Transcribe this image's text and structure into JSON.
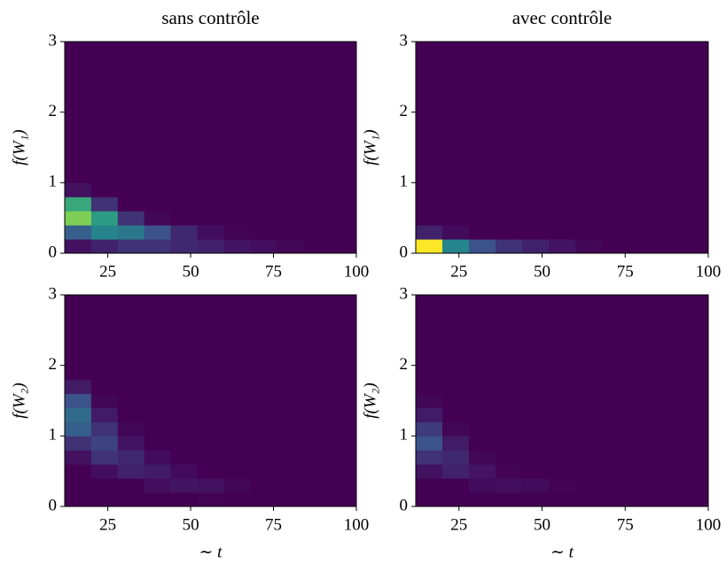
{
  "chart_data": [
    {
      "type": "heatmap",
      "title": "sans contrôle",
      "ylabel": "f(W₁)",
      "colormap": "viridis",
      "xlim": [
        12,
        100
      ],
      "ylim": [
        0,
        3
      ],
      "xticks": [
        25,
        50,
        75,
        100
      ],
      "yticks": [
        0,
        1,
        2,
        3
      ],
      "xbins": [
        12,
        20,
        28,
        36,
        44,
        52,
        60,
        68,
        76,
        84,
        92,
        100
      ],
      "ybins": [
        0,
        0.2,
        0.4,
        0.6,
        0.8,
        1.0,
        1.2,
        1.4,
        1.6,
        1.8,
        2.0,
        2.2,
        2.4,
        2.6,
        2.8,
        3.0
      ],
      "values": [
        [
          0.05,
          0.1,
          0.15,
          0.15,
          0.12,
          0.1,
          0.06,
          0.04,
          0.02,
          0,
          0
        ],
        [
          0.3,
          0.45,
          0.4,
          0.25,
          0.12,
          0.04,
          0.01,
          0,
          0,
          0,
          0
        ],
        [
          0.8,
          0.55,
          0.15,
          0.02,
          0,
          0,
          0,
          0,
          0,
          0,
          0
        ],
        [
          0.6,
          0.15,
          0,
          0,
          0,
          0,
          0,
          0,
          0,
          0,
          0
        ],
        [
          0.05,
          0,
          0,
          0,
          0,
          0,
          0,
          0,
          0,
          0,
          0
        ],
        [
          0,
          0,
          0,
          0,
          0,
          0,
          0,
          0,
          0,
          0,
          0
        ],
        [
          0,
          0,
          0,
          0,
          0,
          0,
          0,
          0,
          0,
          0,
          0
        ],
        [
          0,
          0,
          0,
          0,
          0,
          0,
          0,
          0,
          0,
          0,
          0
        ],
        [
          0,
          0,
          0,
          0,
          0,
          0,
          0,
          0,
          0,
          0,
          0
        ],
        [
          0,
          0,
          0,
          0,
          0,
          0,
          0,
          0,
          0,
          0,
          0
        ],
        [
          0,
          0,
          0,
          0,
          0,
          0,
          0,
          0,
          0,
          0,
          0
        ],
        [
          0,
          0,
          0,
          0,
          0,
          0,
          0,
          0,
          0,
          0,
          0
        ],
        [
          0,
          0,
          0,
          0,
          0,
          0,
          0,
          0,
          0,
          0,
          0
        ],
        [
          0,
          0,
          0,
          0,
          0,
          0,
          0,
          0,
          0,
          0,
          0
        ],
        [
          0,
          0,
          0,
          0,
          0,
          0,
          0,
          0,
          0,
          0,
          0
        ]
      ]
    },
    {
      "type": "heatmap",
      "title": "avec contrôle",
      "ylabel": "f(W₁)",
      "colormap": "viridis",
      "xlim": [
        12,
        100
      ],
      "ylim": [
        0,
        3
      ],
      "xticks": [
        25,
        50,
        75,
        100
      ],
      "yticks": [
        0,
        1,
        2,
        3
      ],
      "xbins": [
        12,
        20,
        28,
        36,
        44,
        52,
        60,
        68,
        76,
        84,
        92,
        100
      ],
      "ybins": [
        0,
        0.2,
        0.4,
        0.6,
        0.8,
        1.0,
        1.2,
        1.4,
        1.6,
        1.8,
        2.0,
        2.2,
        2.4,
        2.6,
        2.8,
        3.0
      ],
      "values": [
        [
          1.0,
          0.45,
          0.25,
          0.15,
          0.1,
          0.06,
          0.02,
          0,
          0,
          0,
          0
        ],
        [
          0.1,
          0.03,
          0,
          0,
          0,
          0,
          0,
          0,
          0,
          0,
          0
        ],
        [
          0,
          0,
          0,
          0,
          0,
          0,
          0,
          0,
          0,
          0,
          0
        ],
        [
          0,
          0,
          0,
          0,
          0,
          0,
          0,
          0,
          0,
          0,
          0
        ],
        [
          0,
          0,
          0,
          0,
          0,
          0,
          0,
          0,
          0,
          0,
          0
        ],
        [
          0,
          0,
          0,
          0,
          0,
          0,
          0,
          0,
          0,
          0,
          0
        ],
        [
          0,
          0,
          0,
          0,
          0,
          0,
          0,
          0,
          0,
          0,
          0
        ],
        [
          0,
          0,
          0,
          0,
          0,
          0,
          0,
          0,
          0,
          0,
          0
        ],
        [
          0,
          0,
          0,
          0,
          0,
          0,
          0,
          0,
          0,
          0,
          0
        ],
        [
          0,
          0,
          0,
          0,
          0,
          0,
          0,
          0,
          0,
          0,
          0
        ],
        [
          0,
          0,
          0,
          0,
          0,
          0,
          0,
          0,
          0,
          0,
          0
        ],
        [
          0,
          0,
          0,
          0,
          0,
          0,
          0,
          0,
          0,
          0,
          0
        ],
        [
          0,
          0,
          0,
          0,
          0,
          0,
          0,
          0,
          0,
          0,
          0
        ],
        [
          0,
          0,
          0,
          0,
          0,
          0,
          0,
          0,
          0,
          0,
          0
        ],
        [
          0,
          0,
          0,
          0,
          0,
          0,
          0,
          0,
          0,
          0,
          0
        ]
      ]
    },
    {
      "type": "heatmap",
      "ylabel": "f(W₂)",
      "xlabel": "∼ t",
      "colormap": "viridis",
      "xlim": [
        12,
        100
      ],
      "ylim": [
        0,
        3
      ],
      "xticks": [
        25,
        50,
        75,
        100
      ],
      "yticks": [
        0,
        1,
        2,
        3
      ],
      "xbins": [
        12,
        20,
        28,
        36,
        44,
        52,
        60,
        68,
        76,
        84,
        92,
        100
      ],
      "ybins": [
        0,
        0.2,
        0.4,
        0.6,
        0.8,
        1.0,
        1.2,
        1.4,
        1.6,
        1.8,
        2.0,
        2.2,
        2.4,
        2.6,
        2.8,
        3.0
      ],
      "values": [
        [
          0,
          0,
          0,
          0,
          0,
          0.01,
          0,
          0,
          0,
          0,
          0
        ],
        [
          0,
          0,
          0,
          0.04,
          0.06,
          0.05,
          0.02,
          0,
          0,
          0,
          0
        ],
        [
          0,
          0.04,
          0.1,
          0.08,
          0.03,
          0,
          0,
          0,
          0,
          0,
          0
        ],
        [
          0.05,
          0.15,
          0.12,
          0.03,
          0,
          0,
          0,
          0,
          0,
          0,
          0
        ],
        [
          0.15,
          0.2,
          0.06,
          0,
          0,
          0,
          0,
          0,
          0,
          0,
          0
        ],
        [
          0.3,
          0.15,
          0.02,
          0,
          0,
          0,
          0,
          0,
          0,
          0,
          0
        ],
        [
          0.35,
          0.08,
          0,
          0,
          0,
          0,
          0,
          0,
          0,
          0,
          0
        ],
        [
          0.25,
          0.02,
          0,
          0,
          0,
          0,
          0,
          0,
          0,
          0,
          0
        ],
        [
          0.08,
          0,
          0,
          0,
          0,
          0,
          0,
          0,
          0,
          0,
          0
        ],
        [
          0,
          0,
          0,
          0,
          0,
          0,
          0,
          0,
          0,
          0,
          0
        ],
        [
          0,
          0,
          0,
          0,
          0,
          0,
          0,
          0,
          0,
          0,
          0
        ],
        [
          0,
          0,
          0,
          0,
          0,
          0,
          0,
          0,
          0,
          0,
          0
        ],
        [
          0,
          0,
          0,
          0,
          0,
          0,
          0,
          0,
          0,
          0,
          0
        ],
        [
          0,
          0,
          0,
          0,
          0,
          0,
          0,
          0,
          0,
          0,
          0
        ],
        [
          0,
          0,
          0,
          0,
          0,
          0,
          0,
          0,
          0,
          0,
          0
        ]
      ]
    },
    {
      "type": "heatmap",
      "ylabel": "f(W₂)",
      "xlabel": "∼ t",
      "colormap": "viridis",
      "xlim": [
        12,
        100
      ],
      "ylim": [
        0,
        3
      ],
      "xticks": [
        25,
        50,
        75,
        100
      ],
      "yticks": [
        0,
        1,
        2,
        3
      ],
      "xbins": [
        12,
        20,
        28,
        36,
        44,
        52,
        60,
        68,
        76,
        84,
        92,
        100
      ],
      "ybins": [
        0,
        0.2,
        0.4,
        0.6,
        0.8,
        1.0,
        1.2,
        1.4,
        1.6,
        1.8,
        2.0,
        2.2,
        2.4,
        2.6,
        2.8,
        3.0
      ],
      "values": [
        [
          0,
          0,
          0,
          0,
          0,
          0,
          0,
          0,
          0,
          0,
          0
        ],
        [
          0,
          0,
          0.03,
          0.04,
          0.03,
          0.01,
          0,
          0,
          0,
          0,
          0
        ],
        [
          0.05,
          0.1,
          0.06,
          0.01,
          0,
          0,
          0,
          0,
          0,
          0,
          0
        ],
        [
          0.15,
          0.12,
          0.02,
          0,
          0,
          0,
          0,
          0,
          0,
          0,
          0
        ],
        [
          0.25,
          0.08,
          0,
          0,
          0,
          0,
          0,
          0,
          0,
          0,
          0
        ],
        [
          0.18,
          0.02,
          0,
          0,
          0,
          0,
          0,
          0,
          0,
          0,
          0
        ],
        [
          0.08,
          0,
          0,
          0,
          0,
          0,
          0,
          0,
          0,
          0,
          0
        ],
        [
          0.02,
          0,
          0,
          0,
          0,
          0,
          0,
          0,
          0,
          0,
          0
        ],
        [
          0,
          0,
          0,
          0,
          0,
          0,
          0,
          0,
          0,
          0,
          0
        ],
        [
          0,
          0,
          0,
          0,
          0,
          0,
          0,
          0,
          0,
          0,
          0
        ],
        [
          0,
          0,
          0,
          0,
          0,
          0,
          0,
          0,
          0,
          0,
          0
        ],
        [
          0,
          0,
          0,
          0,
          0,
          0,
          0,
          0,
          0,
          0,
          0
        ],
        [
          0,
          0,
          0,
          0,
          0,
          0,
          0,
          0,
          0,
          0,
          0
        ],
        [
          0,
          0,
          0,
          0,
          0,
          0,
          0,
          0,
          0,
          0,
          0
        ],
        [
          0,
          0,
          0,
          0,
          0,
          0,
          0,
          0,
          0,
          0,
          0
        ]
      ]
    }
  ]
}
